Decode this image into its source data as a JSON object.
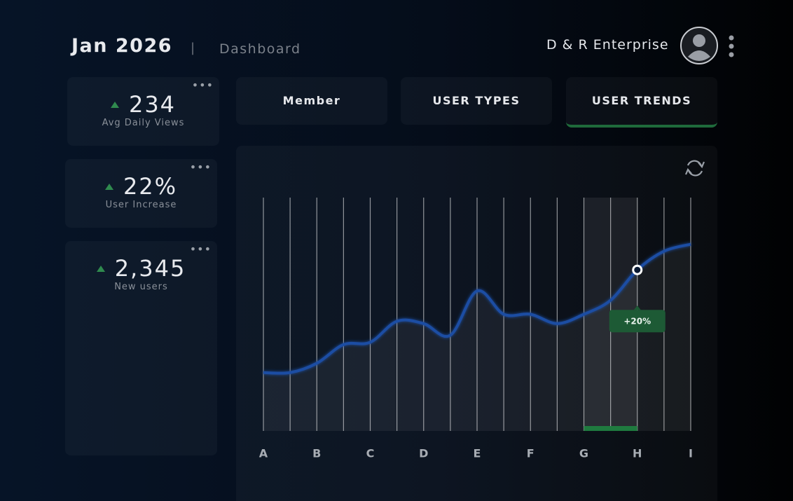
{
  "header": {
    "title": "Jan 2026",
    "section": "Dashboard",
    "company": "D & R Enterprise"
  },
  "stats": [
    {
      "value": "234",
      "label": "Avg Daily Views"
    },
    {
      "value": "22%",
      "label": "User Increase"
    },
    {
      "value": "2,345",
      "label": "New users"
    }
  ],
  "tabs": {
    "items": [
      "Member",
      "USER TYPES",
      "USER TRENDS"
    ],
    "active": 2
  },
  "chart_data": {
    "type": "line",
    "categories": [
      "A",
      null,
      "B",
      null,
      "C",
      null,
      "D",
      null,
      "E",
      null,
      "F",
      null,
      "G",
      null,
      "H",
      null,
      "I"
    ],
    "series": [
      {
        "color": "#1f4ea3",
        "values": [
          25,
          25,
          29,
          37,
          38,
          47,
          46,
          41,
          60,
          50,
          50,
          46,
          50,
          56,
          69,
          77,
          80
        ]
      }
    ],
    "ylim": [
      0,
      100
    ],
    "highlight": {
      "from": 12,
      "to": 14,
      "label": "+20%"
    }
  }
}
